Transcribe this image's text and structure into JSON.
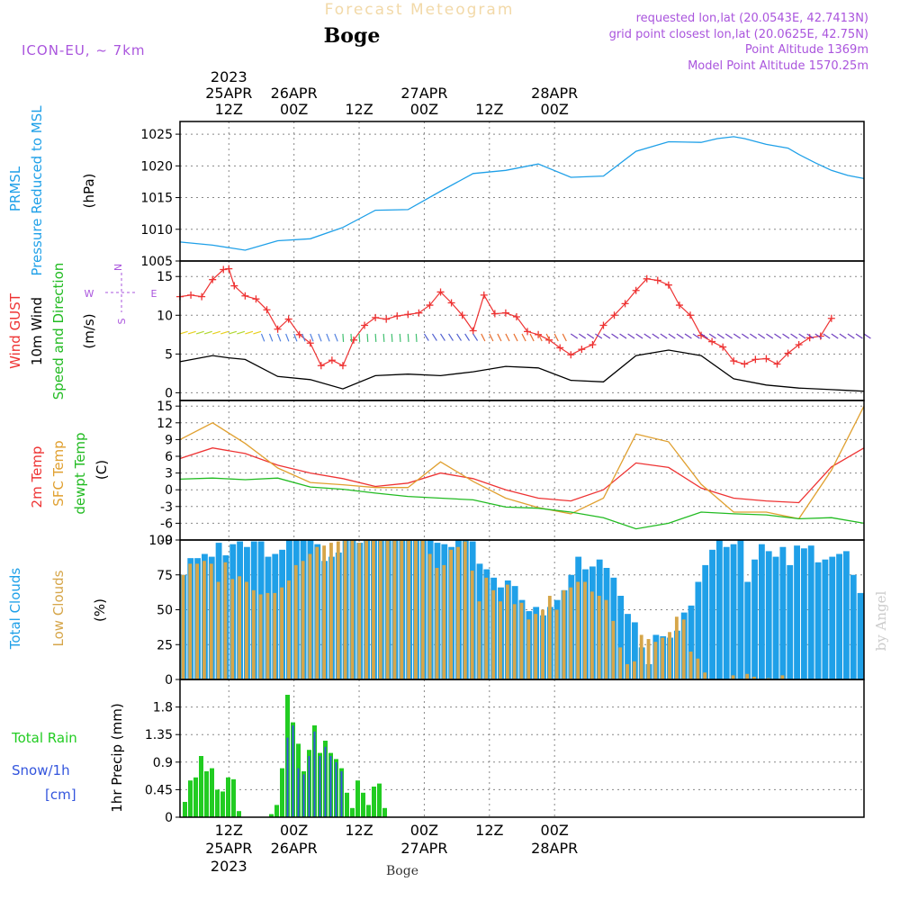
{
  "header": {
    "product": "Forecast Meteogram",
    "location": "Boge",
    "model": "ICON-EU, ~ 7km",
    "requested": "requested lon,lat (20.0543E, 42.7413N)",
    "grid_point": "grid point closest lon,lat (20.0625E, 42.75N)",
    "point_altitude": "Point Altitude 1369m",
    "model_altitude": "Model Point Altitude 1570.25m",
    "footer_location": "Boge",
    "watermark": "by Angel"
  },
  "colors": {
    "pressure": "#1fa0e8",
    "gust": "#ee3333",
    "wind10m": "#000000",
    "speed_dir": "#22bb22",
    "t2m": "#ee3333",
    "sfc": "#e0a030",
    "dewpt": "#22bb22",
    "total_clouds": "#1fa0e8",
    "low_clouds": "#d6a64a",
    "rain": "#22cc22",
    "snow": "#3355dd",
    "header_purple": "#aa55dd",
    "grid": "#888888"
  },
  "chart_data": [
    {
      "type": "line",
      "panel": "pressure",
      "ylabels": [
        "PRMSL",
        "Pressure Reduced to MSL",
        "(hPa)"
      ],
      "x_hours": [
        0,
        6,
        12,
        18,
        24,
        30,
        36,
        42,
        48,
        54,
        60,
        66,
        72,
        78,
        84,
        90,
        96,
        99,
        102,
        104,
        108,
        112,
        114,
        117,
        120,
        123,
        126
      ],
      "series": [
        {
          "name": "PRMSL",
          "values": [
            1008,
            1007.5,
            1006.7,
            1008.2,
            1008.5,
            1010.3,
            1013,
            1013.1,
            1016,
            1018.8,
            1019.3,
            1020.3,
            1018.2,
            1018.4,
            1022.3,
            1023.8,
            1023.7,
            1024.3,
            1024.6,
            1024.3,
            1023.4,
            1022.8,
            1021.8,
            1020.5,
            1019.3,
            1018.5,
            1018
          ]
        }
      ],
      "ylim": [
        1005,
        1027
      ],
      "yticks": [
        "1005",
        "1010",
        "1015",
        "1020",
        "1025"
      ]
    },
    {
      "type": "line",
      "panel": "wind",
      "ylabels": [
        "Wind GUST",
        "10m Wind",
        "Speed and Direction",
        "(m/s)"
      ],
      "compass": {
        "n": "N",
        "s": "S",
        "e": "E",
        "w": "W"
      },
      "gust_x": [
        0,
        2,
        4,
        6,
        8,
        9,
        10,
        12,
        14,
        16,
        18,
        20,
        22,
        24,
        26,
        28,
        30,
        32,
        34,
        36,
        38,
        40,
        42,
        44,
        46,
        48,
        50,
        52,
        54,
        56,
        58,
        60,
        62,
        64,
        66,
        68,
        70,
        72,
        74,
        76,
        78,
        80,
        82,
        84,
        86,
        88,
        90,
        92,
        94,
        96,
        98,
        100,
        102,
        104,
        106,
        108,
        110,
        112,
        114,
        116,
        118,
        120
      ],
      "gust": [
        12.4,
        12.6,
        12.4,
        14.6,
        15.9,
        16,
        13.8,
        12.5,
        12.1,
        10.7,
        8.2,
        9.5,
        7.5,
        6.4,
        3.5,
        4.2,
        3.5,
        6.8,
        8.7,
        9.7,
        9.5,
        9.9,
        10.1,
        10.3,
        11.3,
        13,
        11.6,
        10,
        8,
        12.6,
        10.2,
        10.3,
        9.8,
        7.9,
        7.5,
        6.8,
        5.8,
        4.9,
        5.6,
        6.2,
        8.7,
        10,
        11.5,
        13.2,
        14.7,
        14.5,
        13.9,
        11.3,
        10,
        7.4,
        6.6,
        5.9,
        4.1,
        3.7,
        4.3,
        4.4,
        3.7,
        5.1,
        6.2,
        7.1,
        7.3,
        9.6
      ],
      "wind_x": [
        0,
        6,
        9,
        12,
        18,
        24,
        30,
        36,
        42,
        48,
        54,
        60,
        66,
        72,
        78,
        84,
        90,
        96,
        102,
        108,
        114,
        120,
        123,
        126
      ],
      "wind": [
        4,
        4.8,
        4.5,
        4.3,
        2.1,
        1.7,
        0.5,
        2.2,
        2.4,
        2.2,
        2.7,
        3.4,
        3.2,
        1.6,
        1.4,
        4.8,
        5.5,
        4.8,
        1.8,
        1,
        0.6,
        0.4,
        0.3,
        0.2
      ],
      "ylim": [
        -1,
        17
      ],
      "yticks": [
        "0",
        "5",
        "10",
        "15"
      ]
    },
    {
      "type": "line",
      "panel": "temperature",
      "ylabels": [
        "2m Temp",
        "SFC Temp",
        "dewpt Temp",
        "(C)"
      ],
      "x_hours": [
        0,
        6,
        12,
        18,
        24,
        30,
        36,
        42,
        48,
        54,
        60,
        66,
        72,
        78,
        84,
        90,
        96,
        102,
        108,
        114,
        120,
        126
      ],
      "series": [
        {
          "name": "2m Temp",
          "values": [
            5.6,
            7.5,
            6.5,
            4.4,
            3,
            2,
            0.6,
            1.2,
            3,
            2,
            0,
            -1.5,
            -2,
            0,
            4.8,
            4,
            0.3,
            -1.5,
            -2,
            -2.3,
            4.1,
            7.5
          ]
        },
        {
          "name": "SFC Temp",
          "values": [
            9,
            12,
            8.3,
            3.9,
            1.3,
            0.9,
            0.4,
            0.4,
            5,
            1.5,
            -1.5,
            -3.2,
            -4.3,
            -1.5,
            10,
            8.6,
            1,
            -4,
            -4,
            -5.2,
            3.5,
            15
          ]
        },
        {
          "name": "dewpt Temp",
          "values": [
            1.9,
            2.1,
            1.8,
            2.1,
            0.5,
            0.1,
            -0.6,
            -1.2,
            -1.5,
            -1.8,
            -3.1,
            -3.3,
            -4,
            -5,
            -7,
            -6,
            -4,
            -4.3,
            -4.5,
            -5.2,
            -5,
            -6
          ]
        }
      ],
      "ylim": [
        -9,
        16
      ],
      "yticks": [
        "-9",
        "-6",
        "-3",
        "0",
        "3",
        "6",
        "9",
        "12",
        "15"
      ]
    },
    {
      "type": "bar",
      "panel": "clouds",
      "ylabels": [
        "Total Clouds",
        "Low Clouds",
        "(%)"
      ],
      "series": [
        {
          "name": "Total Clouds",
          "values": [
            75,
            87,
            87,
            90,
            88,
            98,
            89,
            97,
            99,
            95,
            99,
            99,
            88,
            90,
            93,
            100,
            100,
            100,
            100,
            97,
            85,
            88,
            91,
            100,
            100,
            98,
            100,
            100,
            100,
            100,
            100,
            100,
            100,
            100,
            100,
            100,
            98,
            97,
            95,
            100,
            100,
            99,
            83,
            79,
            73,
            66,
            71,
            67,
            57,
            49,
            52,
            46,
            52,
            57,
            64,
            75,
            88,
            79,
            81,
            86,
            80,
            73,
            60,
            47,
            41,
            23,
            11,
            32,
            31,
            30,
            35,
            48,
            53,
            70,
            82,
            93,
            100,
            95,
            97,
            100,
            70,
            86,
            97,
            92,
            88,
            95,
            82,
            96,
            94,
            96,
            84,
            86,
            88,
            90,
            92,
            75,
            62
          ]
        },
        {
          "name": "Low Clouds",
          "values": [
            75,
            83,
            83,
            85,
            83,
            70,
            84,
            72,
            74,
            70,
            64,
            61,
            62,
            62,
            66,
            71,
            82,
            85,
            90,
            95,
            96,
            98,
            99,
            100,
            100,
            98,
            100,
            100,
            100,
            100,
            100,
            100,
            100,
            100,
            100,
            90,
            80,
            82,
            93,
            95,
            99,
            78,
            56,
            73,
            64,
            56,
            68,
            54,
            55,
            43,
            47,
            50,
            60,
            50,
            64,
            66,
            70,
            70,
            63,
            60,
            57,
            42,
            23,
            11,
            13,
            32,
            29,
            27,
            30,
            34,
            45,
            43,
            20,
            15,
            5,
            0,
            0,
            0,
            3,
            0,
            4,
            2,
            0,
            1,
            0,
            3,
            0,
            0,
            0,
            0,
            0,
            0,
            0,
            0,
            0,
            0,
            0
          ]
        }
      ],
      "ylim": [
        0,
        100
      ],
      "yticks": [
        "0",
        "25",
        "50",
        "75",
        "100"
      ]
    },
    {
      "type": "bar",
      "panel": "precip",
      "ylabels": [
        "Total Rain",
        "Snow/1h",
        "[cm]",
        "1hr Precip (mm)"
      ],
      "series": [
        {
          "name": "Total Rain",
          "values": [
            0.25,
            0.6,
            0.65,
            1.0,
            0.75,
            0.8,
            0.45,
            0.42,
            0.65,
            0.62,
            0.1,
            0,
            0,
            0,
            0,
            0,
            0.05,
            0.2,
            0.8,
            2.0,
            1.55,
            1.2,
            0.75,
            1.1,
            1.5,
            1.05,
            1.25,
            1.05,
            0.95,
            0.8,
            0.4,
            0.15,
            0.6,
            0.4,
            0.2,
            0.5,
            0.55,
            0.15
          ]
        },
        {
          "name": "Snow/1h",
          "values": [
            0,
            0,
            0,
            0,
            0,
            0,
            0,
            0,
            0,
            0,
            0,
            0,
            0,
            0,
            0,
            0,
            0,
            0,
            0,
            1.3,
            1.5,
            0.8,
            0.7,
            1.0,
            1.4,
            1.0,
            1.15,
            1.0,
            0.9,
            0.75,
            0,
            0,
            0,
            0,
            0,
            0,
            0,
            0
          ]
        }
      ],
      "ylim": [
        0,
        2.25
      ],
      "yticks": [
        "0",
        "0.45",
        "0.9",
        "1.35",
        "1.8"
      ]
    }
  ],
  "time_axis": {
    "top_labels": [
      {
        "hour": 9,
        "lines": [
          "2023",
          "25APR",
          "12Z"
        ]
      },
      {
        "hour": 21,
        "lines": [
          "26APR",
          "00Z"
        ]
      },
      {
        "hour": 33,
        "lines": [
          "12Z"
        ]
      },
      {
        "hour": 45,
        "lines": [
          "27APR",
          "00Z"
        ]
      },
      {
        "hour": 57,
        "lines": [
          "12Z"
        ]
      },
      {
        "hour": 69,
        "lines": [
          "28APR",
          "00Z"
        ]
      }
    ],
    "bottom_labels": [
      {
        "hour": 9,
        "lines": [
          "12Z",
          "25APR",
          "2023"
        ]
      },
      {
        "hour": 21,
        "lines": [
          "00Z",
          "26APR"
        ]
      },
      {
        "hour": 33,
        "lines": [
          "12Z"
        ]
      },
      {
        "hour": 45,
        "lines": [
          "00Z",
          "27APR"
        ]
      },
      {
        "hour": 57,
        "lines": [
          "12Z"
        ]
      },
      {
        "hour": 69,
        "lines": [
          "00Z",
          "28APR"
        ]
      }
    ]
  }
}
